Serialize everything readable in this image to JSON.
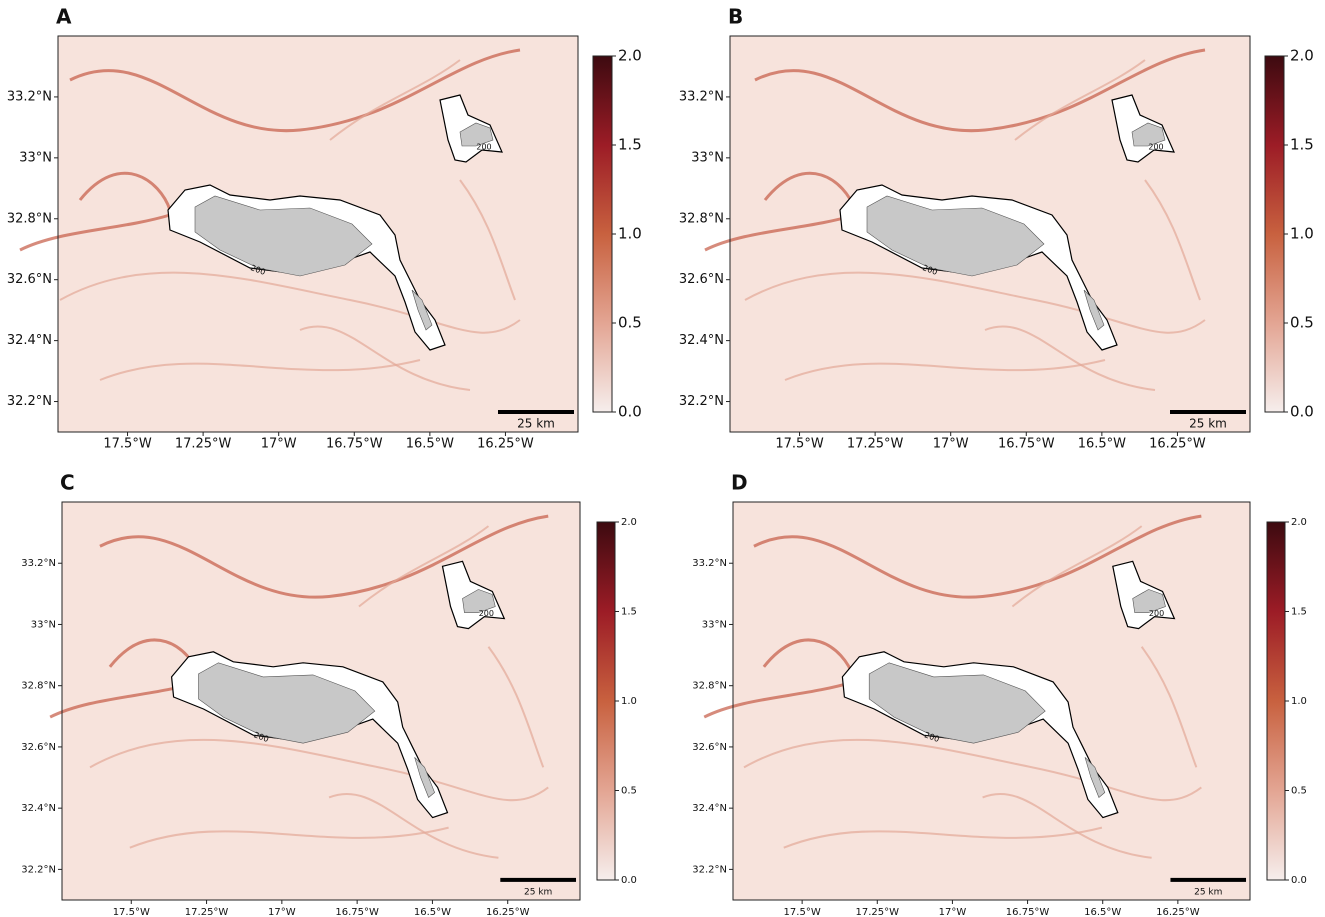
{
  "xlim": [
    -17.73,
    -16.01
  ],
  "ylim": [
    32.1,
    33.4
  ],
  "cbar_lim": [
    0,
    2
  ],
  "panels": [
    {
      "label": "A",
      "xticks": [
        {
          "value": -17.5,
          "label": "17.5°W"
        },
        {
          "value": -17.25,
          "label": "17.25°W"
        },
        {
          "value": -17,
          "label": "17°W"
        },
        {
          "value": -16.75,
          "label": "16.75°W"
        },
        {
          "value": -16.5,
          "label": "16.5°W"
        },
        {
          "value": -16.25,
          "label": "16.25°W"
        }
      ],
      "yticks": [
        {
          "value": 32.2,
          "label": "32.2°N"
        },
        {
          "value": 32.4,
          "label": "32.4°N"
        },
        {
          "value": 32.6,
          "label": "32.6°N"
        },
        {
          "value": 32.8,
          "label": "32.8°N"
        },
        {
          "value": 33,
          "label": "33°N"
        },
        {
          "value": 33.2,
          "label": "33.2°N"
        }
      ],
      "cbar_ticks": [
        {
          "value": 0,
          "label": "0.0"
        },
        {
          "value": 0.5,
          "label": "0.5"
        },
        {
          "value": 1,
          "label": "1.0"
        },
        {
          "value": 1.5,
          "label": "1.5"
        },
        {
          "value": 2,
          "label": "2.0"
        }
      ],
      "scale_label": "25 km",
      "contour_labels": [
        "200",
        "200"
      ]
    },
    {
      "label": "B",
      "xticks": [
        {
          "value": -17.5,
          "label": "17.5°W"
        },
        {
          "value": -17.25,
          "label": "17.25°W"
        },
        {
          "value": -17,
          "label": "17°W"
        },
        {
          "value": -16.75,
          "label": "16.75°W"
        },
        {
          "value": -16.5,
          "label": "16.5°W"
        },
        {
          "value": -16.25,
          "label": "16.25°W"
        }
      ],
      "yticks": [
        {
          "value": 32.2,
          "label": "32.2°N"
        },
        {
          "value": 32.4,
          "label": "32.4°N"
        },
        {
          "value": 32.6,
          "label": "32.6°N"
        },
        {
          "value": 32.8,
          "label": "32.8°N"
        },
        {
          "value": 33,
          "label": "33°N"
        },
        {
          "value": 33.2,
          "label": "33.2°N"
        }
      ],
      "cbar_ticks": [
        {
          "value": 0,
          "label": "0.0"
        },
        {
          "value": 0.5,
          "label": "0.5"
        },
        {
          "value": 1,
          "label": "1.0"
        },
        {
          "value": 1.5,
          "label": "1.5"
        },
        {
          "value": 2,
          "label": "2.0"
        }
      ],
      "scale_label": "25 km",
      "contour_labels": [
        "200",
        "200"
      ]
    },
    {
      "label": "C",
      "xticks": [
        {
          "value": -17.5,
          "label": "17.5°W"
        },
        {
          "value": -17.25,
          "label": "17.25°W"
        },
        {
          "value": -17,
          "label": "17°W"
        },
        {
          "value": -16.75,
          "label": "16.75°W"
        },
        {
          "value": -16.5,
          "label": "16.5°W"
        },
        {
          "value": -16.25,
          "label": "16.25°W"
        }
      ],
      "yticks": [
        {
          "value": 32.2,
          "label": "32.2°N"
        },
        {
          "value": 32.4,
          "label": "32.4°N"
        },
        {
          "value": 32.6,
          "label": "32.6°N"
        },
        {
          "value": 32.8,
          "label": "32.8°N"
        },
        {
          "value": 33,
          "label": "33°N"
        },
        {
          "value": 33.2,
          "label": "33.2°N"
        }
      ],
      "cbar_ticks": [
        {
          "value": 0,
          "label": "0.0"
        },
        {
          "value": 0.5,
          "label": "0.5"
        },
        {
          "value": 1,
          "label": "1.0"
        },
        {
          "value": 1.5,
          "label": "1.5"
        },
        {
          "value": 2,
          "label": "2.0"
        }
      ],
      "scale_label": "25 km",
      "contour_labels": [
        "200",
        "200"
      ]
    },
    {
      "label": "D",
      "xticks": [
        {
          "value": -17.5,
          "label": "17.5°W"
        },
        {
          "value": -17.25,
          "label": "17.25°W"
        },
        {
          "value": -17,
          "label": "17°W"
        },
        {
          "value": -16.75,
          "label": "16.75°W"
        },
        {
          "value": -16.5,
          "label": "16.5°W"
        },
        {
          "value": -16.25,
          "label": "16.25°W"
        }
      ],
      "yticks": [
        {
          "value": 32.2,
          "label": "32.2°N"
        },
        {
          "value": 32.4,
          "label": "32.4°N"
        },
        {
          "value": 32.6,
          "label": "32.6°N"
        },
        {
          "value": 32.8,
          "label": "32.8°N"
        },
        {
          "value": 33,
          "label": "33°N"
        },
        {
          "value": 33.2,
          "label": "33.2°N"
        }
      ],
      "cbar_ticks": [
        {
          "value": 0,
          "label": "0.0"
        },
        {
          "value": 0.5,
          "label": "0.5"
        },
        {
          "value": 1,
          "label": "1.0"
        },
        {
          "value": 1.5,
          "label": "1.5"
        },
        {
          "value": 2,
          "label": "2.0"
        }
      ],
      "scale_label": "25 km",
      "contour_labels": [
        "200",
        "200"
      ]
    }
  ]
}
